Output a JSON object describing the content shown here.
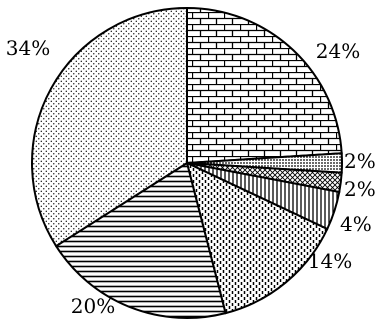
{
  "chart_data": {
    "type": "pie",
    "title": "",
    "start_angle_deg": -90,
    "direction": "clockwise",
    "legend": "none",
    "slices": [
      {
        "value": 24,
        "label": "24%",
        "pattern": "brick"
      },
      {
        "value": 2,
        "label": "2%",
        "pattern": "dense-dots"
      },
      {
        "value": 2,
        "label": "2%",
        "pattern": "crosshatch"
      },
      {
        "value": 4,
        "label": "4%",
        "pattern": "vertical-lines"
      },
      {
        "value": 14,
        "label": "14%",
        "pattern": "dashed-vertical"
      },
      {
        "value": 20,
        "label": "20%",
        "pattern": "horizontal-lines"
      },
      {
        "value": 34,
        "label": "34%",
        "pattern": "sparse-dots"
      }
    ]
  }
}
